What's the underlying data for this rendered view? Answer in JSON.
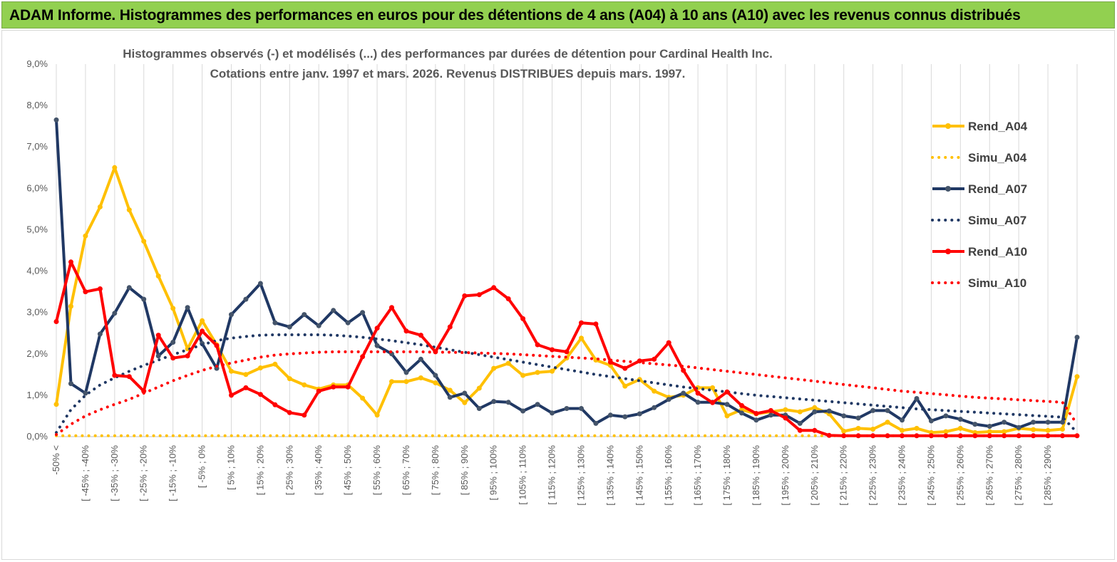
{
  "banner": {
    "title": "ADAM Informe. Histogrammes des performances en euros pour des détentions de 4 ans (A04) à 10 ans (A10) avec les revenus connus distribués"
  },
  "colors": {
    "banner_bg": "#92d050",
    "A04": "#ffc000",
    "A07": "#203864",
    "A10": "#ff0000",
    "grid": "#d9d9d9",
    "axis_text": "#595959"
  },
  "chart_data": {
    "type": "line",
    "title_line1": "Histogrammes observés (-) et modélisés (...) des performances par durées de détention pour Cardinal Health Inc.",
    "title_line2": "Cotations entre janv. 1997 et mars. 2026. Revenus DISTRIBUES depuis mars. 1997.",
    "ylim": [
      0,
      9
    ],
    "y_ticks": [
      "0,0%",
      "1,0%",
      "2,0%",
      "3,0%",
      "4,0%",
      "5,0%",
      "6,0%",
      "7,0%",
      "8,0%",
      "9,0%"
    ],
    "x_labels": [
      "-50% <",
      "[ -45% ; -40%",
      "[ -35% ; -30%",
      "[ -25% ; -20%",
      "[ -15% ; -10%",
      "[ -5% ; 0%",
      "[ 5% ; 10%",
      "[ 15% ; 20%",
      "[ 25% ; 30%",
      "[ 35% ; 40%",
      "[ 45% ; 50%",
      "[ 55% ; 60%",
      "[ 65% ; 70%",
      "[ 75% ; 80%",
      "[ 85% ; 90%",
      "[ 95% ; 100%",
      "[ 105% ; 110%",
      "[ 115% ; 120%",
      "[ 125% ; 130%",
      "[ 135% ; 140%",
      "[ 145% ; 150%",
      "[ 155% ; 160%",
      "[ 165% ; 170%",
      "[ 175% ; 180%",
      "[ 185% ; 190%",
      "[ 195% ; 200%",
      "[ 205% ; 210%",
      "[ 215% ; 220%",
      "[ 225% ; 230%",
      "[ 235% ; 240%",
      "[ 245% ; 250%",
      "[ 255% ; 260%",
      "[ 265% ; 270%",
      "[ 275% ; 280%",
      "[ 285% ; 290%"
    ],
    "n_categories": 71,
    "series": [
      {
        "name": "Rend_A04",
        "style": "solid",
        "color": "#ffc000",
        "values": [
          0.78,
          3.15,
          4.85,
          5.55,
          6.5,
          5.48,
          4.72,
          3.88,
          3.1,
          2.12,
          2.8,
          2.22,
          1.58,
          1.5,
          1.66,
          1.75,
          1.4,
          1.25,
          1.15,
          1.25,
          1.25,
          0.93,
          0.52,
          1.33,
          1.33,
          1.42,
          1.3,
          1.12,
          0.82,
          1.17,
          1.65,
          1.77,
          1.48,
          1.55,
          1.58,
          1.9,
          2.38,
          1.85,
          1.72,
          1.22,
          1.38,
          1.1,
          0.95,
          1.0,
          1.18,
          1.18,
          0.5,
          0.65,
          0.55,
          0.6,
          0.65,
          0.6,
          0.7,
          0.55,
          0.13,
          0.2,
          0.18,
          0.35,
          0.15,
          0.2,
          0.1,
          0.12,
          0.2,
          0.1,
          0.12,
          0.12,
          0.2,
          0.17,
          0.15,
          0.18,
          1.45
        ]
      },
      {
        "name": "Simu_A04",
        "style": "dotted",
        "color": "#ffc000",
        "values": [
          0.02,
          0.02,
          0.02,
          0.02,
          0.02,
          0.02,
          0.02,
          0.02,
          0.02,
          0.02,
          0.02,
          0.02,
          0.02,
          0.02,
          0.02,
          0.02,
          0.02,
          0.02,
          0.02,
          0.02,
          0.02,
          0.02,
          0.02,
          0.02,
          0.02,
          0.02,
          0.02,
          0.02,
          0.02,
          0.02,
          0.02,
          0.02,
          0.02,
          0.02,
          0.02,
          0.02,
          0.02,
          0.02,
          0.02,
          0.02,
          0.02,
          0.02,
          0.02,
          0.02,
          0.02,
          0.02,
          0.02,
          0.02,
          0.02,
          0.02,
          0.02,
          0.02,
          0.02,
          0.02,
          0.02,
          0.02,
          0.02,
          0.02,
          0.02,
          0.02,
          0.02,
          0.02,
          0.02,
          0.02,
          0.02,
          0.02,
          0.02,
          0.02,
          0.02,
          0.02,
          0.02
        ]
      },
      {
        "name": "Rend_A07",
        "style": "solid",
        "color": "#203864",
        "values": [
          7.65,
          1.28,
          1.05,
          2.48,
          2.98,
          3.6,
          3.32,
          1.95,
          2.28,
          3.12,
          2.25,
          1.65,
          2.95,
          3.32,
          3.7,
          2.75,
          2.65,
          2.95,
          2.68,
          3.05,
          2.75,
          3.0,
          2.2,
          2.0,
          1.55,
          1.87,
          1.48,
          0.95,
          1.05,
          0.68,
          0.85,
          0.83,
          0.62,
          0.78,
          0.57,
          0.68,
          0.68,
          0.32,
          0.52,
          0.48,
          0.55,
          0.7,
          0.9,
          1.05,
          0.83,
          0.83,
          0.78,
          0.57,
          0.4,
          0.52,
          0.52,
          0.32,
          0.6,
          0.62,
          0.5,
          0.45,
          0.63,
          0.63,
          0.4,
          0.92,
          0.38,
          0.5,
          0.42,
          0.3,
          0.25,
          0.35,
          0.22,
          0.35,
          0.35,
          0.35,
          2.4
        ]
      },
      {
        "name": "Simu_A07",
        "style": "dotted",
        "color": "#203864",
        "values": [
          0.1,
          0.65,
          1.0,
          1.25,
          1.42,
          1.58,
          1.72,
          1.85,
          1.98,
          2.1,
          2.22,
          2.32,
          2.38,
          2.42,
          2.45,
          2.46,
          2.46,
          2.46,
          2.46,
          2.45,
          2.43,
          2.4,
          2.36,
          2.32,
          2.27,
          2.22,
          2.16,
          2.1,
          2.04,
          1.98,
          1.92,
          1.86,
          1.8,
          1.74,
          1.68,
          1.62,
          1.56,
          1.5,
          1.45,
          1.4,
          1.35,
          1.3,
          1.25,
          1.2,
          1.16,
          1.12,
          1.08,
          1.04,
          1.0,
          0.97,
          0.94,
          0.91,
          0.88,
          0.85,
          0.82,
          0.79,
          0.76,
          0.73,
          0.7,
          0.67,
          0.65,
          0.63,
          0.61,
          0.59,
          0.57,
          0.55,
          0.53,
          0.51,
          0.49,
          0.47,
          0.1
        ]
      },
      {
        "name": "Rend_A10",
        "style": "solid",
        "color": "#ff0000",
        "values": [
          2.78,
          4.22,
          3.5,
          3.57,
          1.48,
          1.45,
          1.1,
          2.45,
          1.9,
          1.95,
          2.55,
          2.2,
          1.0,
          1.18,
          1.02,
          0.77,
          0.58,
          0.52,
          1.1,
          1.2,
          1.2,
          1.93,
          2.62,
          3.12,
          2.55,
          2.45,
          2.05,
          2.65,
          3.4,
          3.43,
          3.6,
          3.33,
          2.85,
          2.22,
          2.1,
          2.05,
          2.75,
          2.72,
          1.8,
          1.65,
          1.83,
          1.87,
          2.27,
          1.6,
          1.05,
          0.82,
          1.08,
          0.75,
          0.56,
          0.63,
          0.45,
          0.15,
          0.15,
          0.03,
          0.02,
          0.02,
          0.02,
          0.02,
          0.02,
          0.02,
          0.02,
          0.02,
          0.02,
          0.02,
          0.02,
          0.02,
          0.02,
          0.02,
          0.02,
          0.02,
          0.02
        ]
      },
      {
        "name": "Simu_A10",
        "style": "dotted",
        "color": "#ff0000",
        "values": [
          0.05,
          0.3,
          0.5,
          0.65,
          0.78,
          0.9,
          1.05,
          1.2,
          1.35,
          1.48,
          1.6,
          1.7,
          1.78,
          1.85,
          1.92,
          1.97,
          2.0,
          2.02,
          2.04,
          2.05,
          2.05,
          2.05,
          2.05,
          2.05,
          2.05,
          2.05,
          2.04,
          2.04,
          2.03,
          2.02,
          2.01,
          2.0,
          1.98,
          1.96,
          1.94,
          1.92,
          1.9,
          1.88,
          1.85,
          1.82,
          1.79,
          1.76,
          1.73,
          1.7,
          1.66,
          1.62,
          1.58,
          1.54,
          1.5,
          1.46,
          1.42,
          1.38,
          1.34,
          1.3,
          1.26,
          1.22,
          1.18,
          1.14,
          1.1,
          1.07,
          1.04,
          1.01,
          0.98,
          0.95,
          0.93,
          0.91,
          0.89,
          0.87,
          0.85,
          0.83,
          0.3
        ]
      }
    ],
    "legend": [
      "Rend_A04",
      "Simu_A04",
      "Rend_A07",
      "Simu_A07",
      "Rend_A10",
      "Simu_A10"
    ],
    "legend_position": "right"
  }
}
